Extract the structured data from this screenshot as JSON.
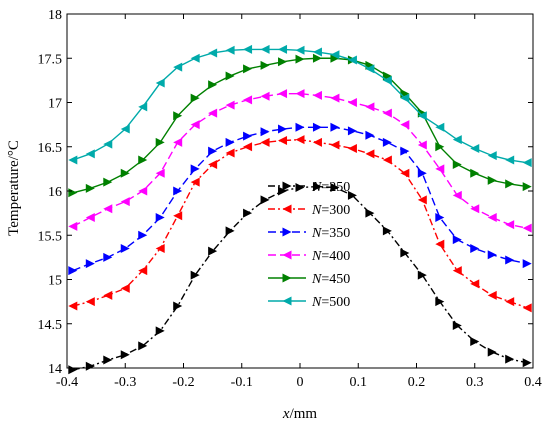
{
  "chart_data": {
    "type": "line",
    "xlabel_var": "x",
    "xlabel_unit": "/mm",
    "ylabel": "Temperature/°C",
    "xlim": [
      -0.4,
      0.4
    ],
    "ylim": [
      14,
      18
    ],
    "xticks": [
      -0.4,
      -0.3,
      -0.2,
      -0.1,
      0,
      0.1,
      0.2,
      0.3,
      0.4
    ],
    "yticks": [
      14,
      14.5,
      15,
      15.5,
      16,
      16.5,
      17,
      17.5,
      18
    ],
    "xtick_labels": [
      "-0.4",
      "-0.3",
      "-0.2",
      "-0.1",
      "0",
      "0.1",
      "0.2",
      "0.3",
      "0.4"
    ],
    "ytick_labels": [
      "14",
      "14.5",
      "15",
      "15.5",
      "16",
      "16.5",
      "17",
      "17.5",
      "18"
    ],
    "legend_position": "lower-center",
    "x": [
      -0.39,
      -0.36,
      -0.33,
      -0.3,
      -0.27,
      -0.24,
      -0.21,
      -0.18,
      -0.15,
      -0.12,
      -0.09,
      -0.06,
      -0.03,
      0,
      0.03,
      0.06,
      0.09,
      0.12,
      0.15,
      0.18,
      0.21,
      0.24,
      0.27,
      0.3,
      0.33,
      0.36,
      0.39
    ],
    "series": [
      {
        "name": "250",
        "color": "#000000",
        "marker": "triangle-right",
        "dash": "7,3,2,3",
        "values": [
          13.98,
          14.02,
          14.09,
          14.15,
          14.25,
          14.42,
          14.7,
          15.05,
          15.32,
          15.55,
          15.75,
          15.9,
          16.0,
          16.04,
          16.05,
          16.04,
          15.95,
          15.75,
          15.55,
          15.3,
          15.05,
          14.75,
          14.48,
          14.3,
          14.18,
          14.1,
          14.06
        ]
      },
      {
        "name": "300",
        "color": "#ff0000",
        "marker": "triangle-left",
        "dash": "7,3,2,3",
        "values": [
          14.7,
          14.75,
          14.82,
          14.9,
          15.1,
          15.35,
          15.72,
          16.1,
          16.3,
          16.43,
          16.5,
          16.55,
          16.57,
          16.58,
          16.55,
          16.52,
          16.48,
          16.42,
          16.35,
          16.2,
          15.9,
          15.4,
          15.1,
          14.95,
          14.82,
          14.75,
          14.68
        ]
      },
      {
        "name": "350",
        "color": "#0000ff",
        "marker": "triangle-right",
        "dash": "8,4",
        "values": [
          15.1,
          15.18,
          15.25,
          15.35,
          15.5,
          15.7,
          16.0,
          16.25,
          16.45,
          16.55,
          16.62,
          16.67,
          16.7,
          16.72,
          16.72,
          16.72,
          16.68,
          16.63,
          16.55,
          16.45,
          16.2,
          15.7,
          15.45,
          15.35,
          15.28,
          15.22,
          15.18
        ]
      },
      {
        "name": "400",
        "color": "#ff00ff",
        "marker": "triangle-left",
        "dash": "8,4",
        "values": [
          15.6,
          15.7,
          15.8,
          15.88,
          16.0,
          16.2,
          16.55,
          16.75,
          16.88,
          16.97,
          17.03,
          17.07,
          17.1,
          17.1,
          17.08,
          17.05,
          17.0,
          16.95,
          16.88,
          16.75,
          16.52,
          16.25,
          15.95,
          15.8,
          15.7,
          15.62,
          15.58
        ]
      },
      {
        "name": "450",
        "color": "#008000",
        "marker": "triangle-right",
        "dash": "",
        "values": [
          15.98,
          16.03,
          16.1,
          16.2,
          16.35,
          16.55,
          16.85,
          17.05,
          17.2,
          17.3,
          17.38,
          17.42,
          17.46,
          17.49,
          17.5,
          17.5,
          17.48,
          17.42,
          17.3,
          17.1,
          16.88,
          16.5,
          16.3,
          16.2,
          16.12,
          16.08,
          16.05
        ]
      },
      {
        "name": "500",
        "color": "#00aaaa",
        "marker": "triangle-left",
        "dash": "",
        "values": [
          16.35,
          16.42,
          16.53,
          16.7,
          16.95,
          17.22,
          17.4,
          17.5,
          17.56,
          17.59,
          17.6,
          17.6,
          17.6,
          17.59,
          17.57,
          17.54,
          17.48,
          17.38,
          17.25,
          17.05,
          16.85,
          16.72,
          16.58,
          16.48,
          16.4,
          16.35,
          16.32
        ]
      }
    ]
  }
}
